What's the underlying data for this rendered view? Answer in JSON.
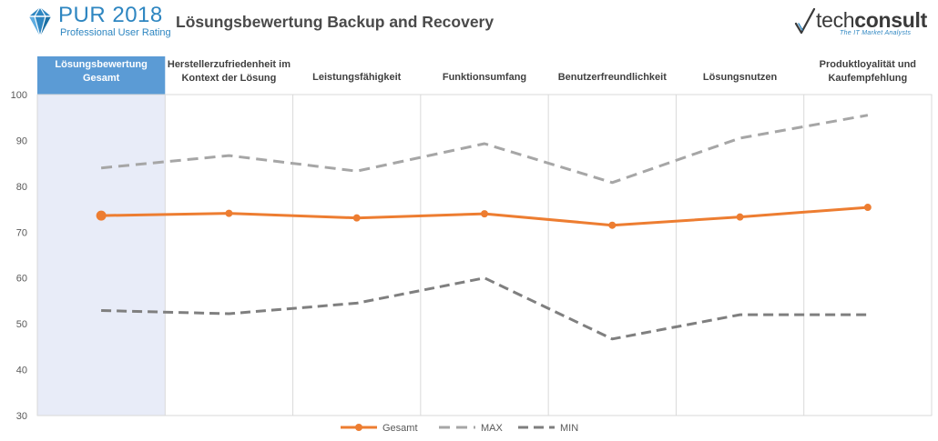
{
  "header": {
    "logo_main": "PUR 2018",
    "logo_sub": "Professional User Rating",
    "title": "Lösungsbewertung Backup and Recovery",
    "brand_prefix": "tech",
    "brand_suffix": "consult",
    "brand_tagline": "The IT Market Analysts",
    "accent_color": "#2e86c1"
  },
  "chart_data": {
    "type": "line",
    "categories": [
      "Lösungsbewertung Gesamt",
      "Herstellerzufriedenheit im Kontext der Lösung",
      "Leistungsfähigkeit",
      "Funktionsumfang",
      "Benutzerfreundlichkeit",
      "Lösungsnutzen",
      "Produktloyalität und Kaufempfehlung"
    ],
    "category_lines": [
      [
        "Lösungsbewertung",
        "Gesamt"
      ],
      [
        "Herstellerzufriedenheit im",
        "Kontext der Lösung"
      ],
      [
        "Leistungsfähigkeit"
      ],
      [
        "Funktionsumfang"
      ],
      [
        "Benutzerfreundlichkeit"
      ],
      [
        "Lösungsnutzen"
      ],
      [
        "Produktloyalität und",
        "Kaufempfehlung"
      ]
    ],
    "highlighted_category": 0,
    "series": [
      {
        "name": "Gesamt",
        "values": [
          73.6,
          74.1,
          73.1,
          74.0,
          71.5,
          73.3,
          75.4
        ],
        "color": "#ed7d31",
        "style": "solid-markers"
      },
      {
        "name": "MAX",
        "values": [
          84.0,
          86.7,
          83.3,
          89.3,
          80.8,
          90.5,
          95.5
        ],
        "color": "#a6a6a6",
        "style": "dashed"
      },
      {
        "name": "MIN",
        "values": [
          52.9,
          52.2,
          54.5,
          60.0,
          46.7,
          52.0,
          52.0
        ],
        "color": "#7f7f7f",
        "style": "dashed"
      }
    ],
    "y_ticks": [
      "30",
      "40",
      "50",
      "60",
      "70",
      "80",
      "90",
      "100"
    ],
    "ylim": [
      30,
      100
    ],
    "grid": "vertical",
    "legend_position": "bottom",
    "colors": {
      "highlight_header": "#5b9bd5",
      "highlight_band": "#e8ecf8"
    }
  }
}
